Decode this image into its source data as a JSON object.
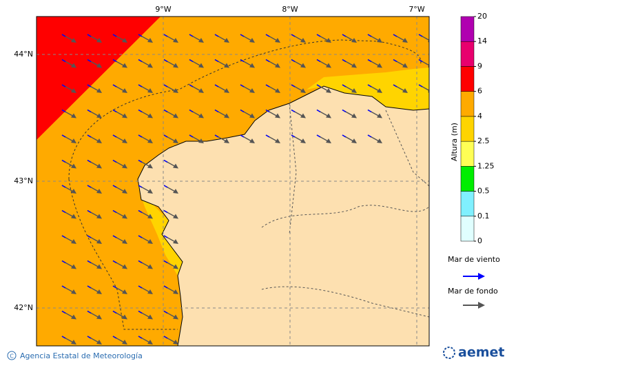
{
  "map": {
    "lon_labels": [
      "9°W",
      "8°W",
      "7°W"
    ],
    "lat_labels": [
      "44°N",
      "43°N",
      "42°N"
    ]
  },
  "legend": {
    "title": "Altura (m)",
    "levels": [
      0,
      0.1,
      0.5,
      1.25,
      2.5,
      4,
      6,
      9,
      14,
      20
    ],
    "colors": [
      "#e0ffff",
      "#80f0ff",
      "#00ee00",
      "#ffff55",
      "#ffd400",
      "#ffaa00",
      "#ff0000",
      "#e8006e",
      "#b000b0"
    ],
    "wind_sea": "Mar de viento",
    "wind_color": "#0000ff",
    "swell": "Mar de fondo",
    "swell_color": "#555555"
  },
  "footer": {
    "copyright": "Agencia Estatal de Meteorología",
    "logo": "aemet"
  }
}
